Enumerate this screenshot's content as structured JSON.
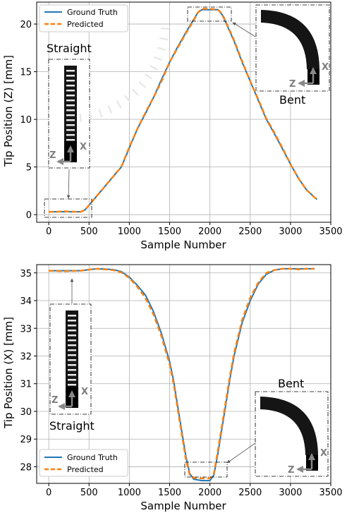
{
  "colors": {
    "ground_truth": "#1f77b4",
    "predicted": "#ff7f0e",
    "grid": "#b0b0b0",
    "inset_arrow": "#888888",
    "axis_letter": "#7f7f7f"
  },
  "chart_data": [
    {
      "type": "line",
      "title": "",
      "xlabel": "Sample Number",
      "ylabel": "Tip Position (Z) [mm]",
      "xlim": [
        -150,
        3500
      ],
      "ylim": [
        -0.8,
        22.3
      ],
      "xticks": [
        0,
        500,
        1000,
        1500,
        2000,
        2500,
        3000,
        3500
      ],
      "yticks": [
        0,
        5,
        10,
        15,
        20
      ],
      "grid": true,
      "legend_position": "top-left",
      "series": [
        {
          "name": "Ground Truth",
          "style": "solid",
          "x": [
            0,
            100,
            200,
            300,
            400,
            450,
            500,
            600,
            700,
            800,
            900,
            1000,
            1100,
            1200,
            1300,
            1400,
            1500,
            1600,
            1700,
            1800,
            1850,
            1900,
            2000,
            2100,
            2150,
            2200,
            2300,
            2400,
            2500,
            2600,
            2700,
            2800,
            2900,
            3000,
            3100,
            3200,
            3300,
            3330
          ],
          "y": [
            0.3,
            0.3,
            0.3,
            0.3,
            0.3,
            0.5,
            1.0,
            2.0,
            3.0,
            4.0,
            5.0,
            7.0,
            9.0,
            10.6,
            12.3,
            14.2,
            16.0,
            17.6,
            19.1,
            20.5,
            21.2,
            21.5,
            21.5,
            21.5,
            21.0,
            20.1,
            18.2,
            16.0,
            14.0,
            12.0,
            10.0,
            8.5,
            6.9,
            5.3,
            3.8,
            2.6,
            1.8,
            1.6
          ]
        },
        {
          "name": "Predicted",
          "style": "dashed",
          "x": [
            0,
            100,
            200,
            300,
            400,
            450,
            500,
            600,
            700,
            800,
            900,
            1000,
            1100,
            1200,
            1300,
            1400,
            1500,
            1600,
            1700,
            1800,
            1850,
            1900,
            2000,
            2100,
            2150,
            2200,
            2300,
            2400,
            2500,
            2600,
            2700,
            2800,
            2900,
            3000,
            3100,
            3200,
            3300,
            3330
          ],
          "y": [
            0.3,
            0.3,
            0.35,
            0.3,
            0.3,
            0.5,
            1.0,
            2.0,
            3.0,
            4.0,
            5.0,
            7.1,
            9.0,
            10.7,
            12.3,
            14.0,
            16.0,
            17.5,
            19.0,
            20.4,
            21.2,
            21.6,
            21.6,
            21.5,
            21.1,
            20.2,
            18.3,
            16.1,
            14.0,
            12.1,
            10.1,
            8.6,
            7.0,
            5.3,
            3.8,
            2.6,
            1.8,
            1.6
          ]
        }
      ],
      "insets": {
        "straight_label": "Straight",
        "bent_label": "Bent",
        "axis_x_letter": "X",
        "axis_z_letter": "Z"
      }
    },
    {
      "type": "line",
      "title": "",
      "xlabel": "Sample Number",
      "ylabel": "Tip Position (X) [mm]",
      "xlim": [
        -150,
        3500
      ],
      "ylim": [
        27.4,
        35.3
      ],
      "xticks": [
        0,
        500,
        1000,
        1500,
        2000,
        2500,
        3000,
        3500
      ],
      "yticks": [
        28,
        29,
        30,
        31,
        32,
        33,
        34,
        35
      ],
      "grid": true,
      "legend_position": "bottom-left",
      "series": [
        {
          "name": "Ground Truth",
          "style": "solid",
          "x": [
            0,
            200,
            400,
            500,
            600,
            700,
            800,
            900,
            1000,
            1100,
            1200,
            1300,
            1400,
            1500,
            1550,
            1600,
            1650,
            1700,
            1750,
            1800,
            1900,
            2000,
            2050,
            2100,
            2150,
            2200,
            2250,
            2300,
            2400,
            2500,
            2600,
            2700,
            2800,
            2900,
            3000,
            3100,
            3200,
            3300
          ],
          "y": [
            35.08,
            35.08,
            35.08,
            35.12,
            35.15,
            35.14,
            35.12,
            35.05,
            34.85,
            34.55,
            34.2,
            33.6,
            32.8,
            31.8,
            31.1,
            30.2,
            29.3,
            28.4,
            27.75,
            27.55,
            27.5,
            27.5,
            27.7,
            28.5,
            29.4,
            30.3,
            31.2,
            32.0,
            33.2,
            34.0,
            34.6,
            34.95,
            35.1,
            35.15,
            35.15,
            35.15,
            35.15,
            35.15
          ]
        },
        {
          "name": "Predicted",
          "style": "dashed",
          "x": [
            0,
            200,
            400,
            500,
            600,
            700,
            800,
            900,
            1000,
            1100,
            1200,
            1300,
            1400,
            1500,
            1550,
            1600,
            1650,
            1700,
            1750,
            1800,
            1900,
            2000,
            2050,
            2100,
            2150,
            2200,
            2250,
            2300,
            2400,
            2500,
            2600,
            2700,
            2800,
            2900,
            3000,
            3100,
            3200,
            3300
          ],
          "y": [
            35.08,
            35.06,
            35.08,
            35.12,
            35.15,
            35.13,
            35.1,
            35.02,
            34.82,
            34.5,
            34.1,
            33.5,
            32.7,
            31.7,
            31.0,
            30.1,
            29.2,
            28.3,
            27.7,
            27.6,
            27.58,
            27.58,
            27.75,
            28.6,
            29.5,
            30.4,
            31.3,
            32.1,
            33.3,
            34.1,
            34.65,
            35.0,
            35.1,
            35.15,
            35.15,
            35.13,
            35.15,
            35.15
          ]
        }
      ],
      "insets": {
        "straight_label": "Straight",
        "bent_label": "Bent",
        "axis_x_letter": "X",
        "axis_z_letter": "Z"
      }
    }
  ]
}
